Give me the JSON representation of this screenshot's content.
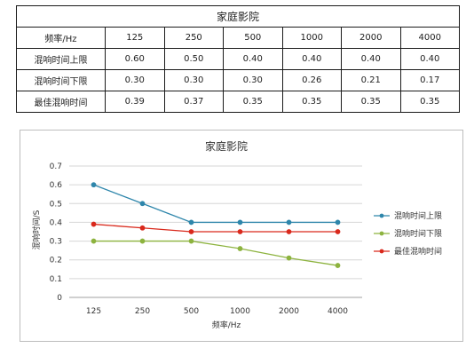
{
  "table": {
    "title": "家庭影院",
    "header_label": "频率/Hz",
    "frequencies": [
      "125",
      "250",
      "500",
      "1000",
      "2000",
      "4000"
    ],
    "rows": [
      {
        "label": "混响时间上限",
        "values": [
          "0.60",
          "0.50",
          "0.40",
          "0.40",
          "0.40",
          "0.40"
        ]
      },
      {
        "label": "混响时间下限",
        "values": [
          "0.30",
          "0.30",
          "0.30",
          "0.26",
          "0.21",
          "0.17"
        ]
      },
      {
        "label": "最佳混响时间",
        "values": [
          "0.39",
          "0.37",
          "0.35",
          "0.35",
          "0.35",
          "0.35"
        ]
      }
    ]
  },
  "chart_data": {
    "type": "line",
    "title": "家庭影院",
    "xlabel": "频率/Hz",
    "ylabel": "混响时间/S",
    "categories": [
      "125",
      "250",
      "500",
      "1000",
      "2000",
      "4000"
    ],
    "x_tick_labels": [
      "125",
      "250",
      "500",
      "1000",
      "2000",
      "4000"
    ],
    "ylim": [
      0,
      0.7
    ],
    "yticks": [
      0,
      0.1,
      0.2,
      0.3,
      0.4,
      0.5,
      0.6,
      0.7
    ],
    "y_tick_labels": [
      "0",
      "0.1",
      "0.2",
      "0.3",
      "0.4",
      "0.5",
      "0.6",
      "0.7"
    ],
    "grid": true,
    "legend_position": "right",
    "series": [
      {
        "name": "混响时间上限",
        "color": "#2e86ab",
        "values": [
          0.6,
          0.5,
          0.4,
          0.4,
          0.4,
          0.4
        ]
      },
      {
        "name": "混响时间下限",
        "color": "#8db33f",
        "values": [
          0.3,
          0.3,
          0.3,
          0.26,
          0.21,
          0.17
        ]
      },
      {
        "name": "最佳混响时间",
        "color": "#d9291c",
        "values": [
          0.39,
          0.37,
          0.35,
          0.35,
          0.35,
          0.35
        ]
      }
    ]
  }
}
